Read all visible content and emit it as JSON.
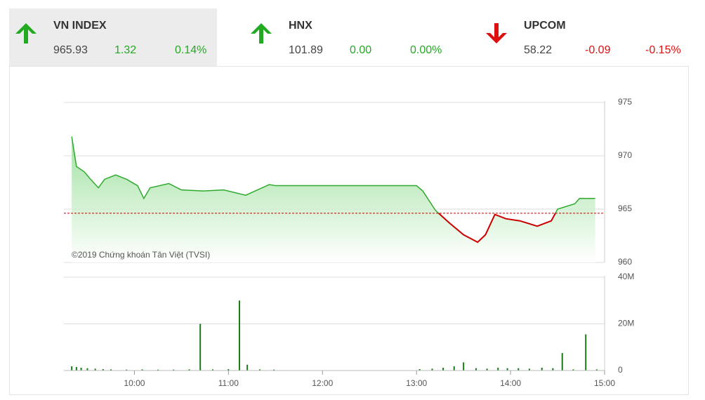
{
  "indices": [
    {
      "name": "VN INDEX",
      "value": "965.93",
      "change": "1.32",
      "percent": "0.14%",
      "direction": "up"
    },
    {
      "name": "HNX",
      "value": "101.89",
      "change": "0.00",
      "percent": "0.00%",
      "direction": "up"
    },
    {
      "name": "UPCOM",
      "value": "58.22",
      "change": "-0.09",
      "percent": "-0.15%",
      "direction": "down"
    }
  ],
  "chart_data": [
    {
      "type": "line",
      "annotation": "©2019 Chứng khoán Tân Việt (TVSI)",
      "x": [
        "09:20",
        "09:23",
        "09:28",
        "09:32",
        "09:37",
        "09:41",
        "09:48",
        "09:55",
        "10:02",
        "10:06",
        "10:10",
        "10:22",
        "10:30",
        "10:44",
        "10:57",
        "11:11",
        "11:26",
        "11:30",
        "13:00",
        "13:04",
        "13:12",
        "13:21",
        "13:30",
        "13:39",
        "13:44",
        "13:50",
        "13:57",
        "14:06",
        "14:17",
        "14:26",
        "14:30",
        "14:41",
        "14:44",
        "14:54"
      ],
      "values": [
        971.8,
        969.0,
        968.5,
        967.8,
        967.0,
        967.8,
        968.2,
        967.8,
        967.2,
        966.0,
        967.0,
        967.4,
        966.8,
        966.7,
        966.8,
        966.3,
        967.3,
        967.2,
        967.2,
        966.7,
        964.9,
        963.7,
        962.6,
        961.9,
        962.6,
        964.5,
        964.1,
        963.9,
        963.4,
        963.9,
        965.0,
        965.5,
        966.0,
        966.0
      ],
      "reference": 964.61,
      "color": "#2eaa2e",
      "below_color": "#cc0000",
      "xlim": [
        "09:15",
        "15:00"
      ],
      "ylim": [
        960,
        975
      ],
      "yticks": [
        960,
        965,
        970,
        975
      ],
      "grid": true
    },
    {
      "type": "bar",
      "x": [
        "09:20",
        "09:23",
        "09:26",
        "09:30",
        "09:35",
        "09:40",
        "09:45",
        "09:55",
        "10:05",
        "10:15",
        "10:25",
        "10:35",
        "10:42",
        "10:50",
        "11:00",
        "11:07",
        "11:12",
        "11:20",
        "11:29",
        "13:02",
        "13:10",
        "13:17",
        "13:24",
        "13:30",
        "13:38",
        "13:45",
        "13:52",
        "13:58",
        "14:05",
        "14:12",
        "14:20",
        "14:27",
        "14:33",
        "14:40",
        "14:48",
        "14:55"
      ],
      "values": [
        1800000,
        1500000,
        1200000,
        1000000,
        800000,
        600000,
        500000,
        400000,
        500000,
        400000,
        400000,
        500000,
        20000000,
        500000,
        600000,
        30000000,
        2500000,
        500000,
        400000,
        600000,
        800000,
        1200000,
        1800000,
        3500000,
        1000000,
        800000,
        1200000,
        1000000,
        1000000,
        800000,
        1200000,
        1000000,
        7500000,
        500000,
        15500000,
        500000
      ],
      "color": "#1a7a1a",
      "xlim": [
        "09:15",
        "15:00"
      ],
      "ylim": [
        0,
        40000000
      ],
      "yticks": [
        0,
        {
          "value": 20000000,
          "label": "20M"
        },
        {
          "value": 40000000,
          "label": "40M"
        }
      ],
      "xticks": [
        "10:00",
        "11:00",
        "12:00",
        "13:00",
        "14:00",
        "15:00"
      ],
      "grid": true
    }
  ]
}
